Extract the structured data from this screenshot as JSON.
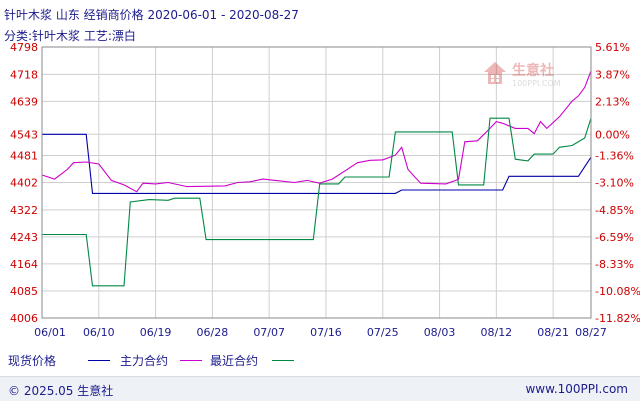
{
  "header": {
    "title": "针叶木浆 山东 经销商价格 2020-06-01 - 2020-08-27",
    "subtitle": "分类:针叶木浆 工艺:漂白"
  },
  "watermark": {
    "name": "生意社",
    "url": "100PPI.COM"
  },
  "legend": {
    "items": [
      {
        "label": "现货价格",
        "color": "#0000aa"
      },
      {
        "label": "主力合约",
        "color": "#cc00cc"
      },
      {
        "label": "最近合约",
        "color": "#008844"
      }
    ]
  },
  "footer": {
    "copyright": "© 2025.05 生意社",
    "site": "www.100PPI.com"
  },
  "chart_data": {
    "type": "line",
    "xlim": [
      "06/01",
      "08/27"
    ],
    "x_tick_labels": [
      "06/01",
      "06/10",
      "06/19",
      "06/28",
      "07/07",
      "07/16",
      "07/25",
      "08/03",
      "08/12",
      "08/21",
      "08/27"
    ],
    "y_left": {
      "ticks": [
        4006,
        4085,
        4164,
        4243,
        4322,
        4402,
        4481,
        4543,
        4639,
        4718,
        4798
      ],
      "ylim": [
        4006,
        4798
      ]
    },
    "y_right": {
      "tick_labels": [
        "-11.82%",
        "-10.08%",
        "-8.33%",
        "-6.59%",
        "-4.85%",
        "-3.10%",
        "-1.36%",
        "0.00%",
        "2.13%",
        "3.87%",
        "5.61%"
      ]
    },
    "grid": true,
    "series": [
      {
        "name": "现货价格",
        "color": "#0000aa",
        "points": [
          [
            "06/01",
            4543
          ],
          [
            "06/08",
            4543
          ],
          [
            "06/09",
            4370
          ],
          [
            "07/27",
            4370
          ],
          [
            "07/28",
            4380
          ],
          [
            "08/13",
            4380
          ],
          [
            "08/14",
            4420
          ],
          [
            "08/25",
            4420
          ],
          [
            "08/27",
            4476
          ]
        ]
      },
      {
        "name": "主力合约",
        "color": "#cc00cc",
        "points": [
          [
            "06/01",
            4424
          ],
          [
            "06/03",
            4412
          ],
          [
            "06/05",
            4440
          ],
          [
            "06/06",
            4460
          ],
          [
            "06/08",
            4462
          ],
          [
            "06/10",
            4456
          ],
          [
            "06/12",
            4408
          ],
          [
            "06/14",
            4395
          ],
          [
            "06/16",
            4375
          ],
          [
            "06/17",
            4400
          ],
          [
            "06/19",
            4398
          ],
          [
            "06/21",
            4402
          ],
          [
            "06/24",
            4390
          ],
          [
            "06/30",
            4392
          ],
          [
            "07/02",
            4402
          ],
          [
            "07/04",
            4404
          ],
          [
            "07/06",
            4412
          ],
          [
            "07/08",
            4408
          ],
          [
            "07/11",
            4402
          ],
          [
            "07/13",
            4408
          ],
          [
            "07/15",
            4400
          ],
          [
            "07/17",
            4412
          ],
          [
            "07/19",
            4436
          ],
          [
            "07/21",
            4460
          ],
          [
            "07/23",
            4467
          ],
          [
            "07/25",
            4468
          ],
          [
            "07/27",
            4482
          ],
          [
            "07/28",
            4505
          ],
          [
            "07/29",
            4440
          ],
          [
            "07/31",
            4400
          ],
          [
            "08/04",
            4398
          ],
          [
            "08/06",
            4411
          ],
          [
            "08/07",
            4521
          ],
          [
            "08/09",
            4524
          ],
          [
            "08/11",
            4560
          ],
          [
            "08/12",
            4580
          ],
          [
            "08/13",
            4575
          ],
          [
            "08/15",
            4560
          ],
          [
            "08/17",
            4560
          ],
          [
            "08/18",
            4545
          ],
          [
            "08/19",
            4580
          ],
          [
            "08/20",
            4560
          ],
          [
            "08/22",
            4594
          ],
          [
            "08/24",
            4640
          ],
          [
            "08/25",
            4655
          ],
          [
            "08/26",
            4680
          ],
          [
            "08/27",
            4728
          ]
        ]
      },
      {
        "name": "最近合约",
        "color": "#008844",
        "points": [
          [
            "06/01",
            4250
          ],
          [
            "06/08",
            4250
          ],
          [
            "06/09",
            4100
          ],
          [
            "06/14",
            4100
          ],
          [
            "06/15",
            4345
          ],
          [
            "06/18",
            4352
          ],
          [
            "06/21",
            4350
          ],
          [
            "06/22",
            4356
          ],
          [
            "06/26",
            4356
          ],
          [
            "06/27",
            4235
          ],
          [
            "07/14",
            4235
          ],
          [
            "07/15",
            4398
          ],
          [
            "07/18",
            4398
          ],
          [
            "07/19",
            4418
          ],
          [
            "07/26",
            4418
          ],
          [
            "07/27",
            4550
          ],
          [
            "08/05",
            4550
          ],
          [
            "08/06",
            4395
          ],
          [
            "08/10",
            4395
          ],
          [
            "08/11",
            4590
          ],
          [
            "08/14",
            4590
          ],
          [
            "08/15",
            4470
          ],
          [
            "08/17",
            4465
          ],
          [
            "08/18",
            4485
          ],
          [
            "08/21",
            4485
          ],
          [
            "08/22",
            4505
          ],
          [
            "08/24",
            4510
          ],
          [
            "08/26",
            4532
          ],
          [
            "08/27",
            4590
          ]
        ]
      }
    ]
  }
}
